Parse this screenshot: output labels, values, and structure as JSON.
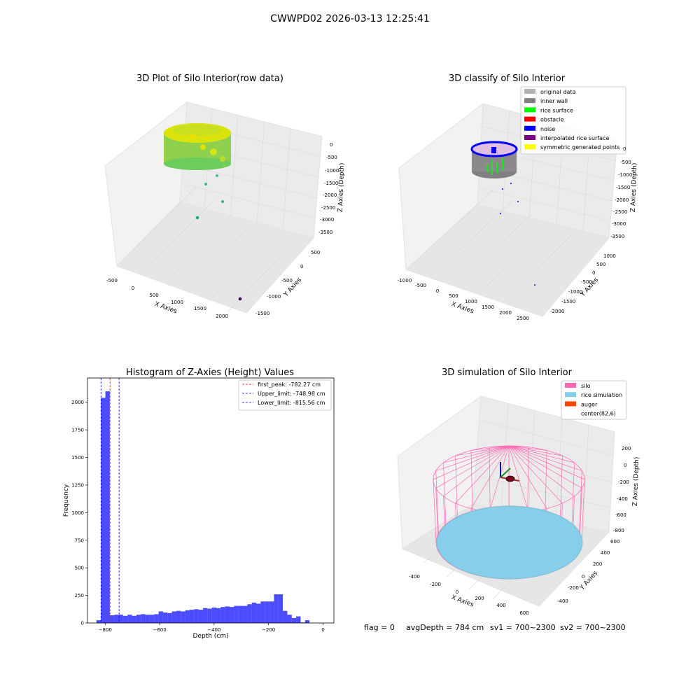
{
  "suptitle": "CWWPD02 2026-03-13 12:25:41",
  "footer": {
    "flag": "flag = 0",
    "avg_depth": "avgDepth = 784 cm",
    "sv1": "sv1 = 700~2300",
    "sv2": "sv2 = 700~2300"
  },
  "panels": {
    "p1": {
      "title": "3D Plot of Silo Interior(row data)",
      "xlabel": "X Axies",
      "ylabel": "Y Axies",
      "zlabel": "Z Axies (Depth)",
      "xticks": [
        "-500",
        "0",
        "500",
        "1000",
        "1500",
        "2000"
      ],
      "yticks": [
        "-1500",
        "-1000",
        "-500",
        "0",
        "500"
      ],
      "zticks": [
        "0",
        "-500",
        "-1000",
        "-1500",
        "-2000",
        "-2500",
        "-3000",
        "-3500"
      ]
    },
    "p2": {
      "title": "3D classify of Silo Interior",
      "xlabel": "X Axies",
      "ylabel": "Y Axies",
      "zlabel": "Z Axies (Depth)",
      "xticks": [
        "-1000",
        "-500",
        "0",
        "500",
        "1000",
        "1500",
        "2000",
        "2500"
      ],
      "yticks": [
        "-2000",
        "-1500",
        "-1000",
        "-500",
        "0",
        "500",
        "1000"
      ],
      "zticks": [
        "0",
        "-500",
        "-1000",
        "-1500",
        "-2000",
        "-2500",
        "-3000",
        "-3500"
      ],
      "legend": [
        {
          "label": "original data",
          "color": "#b4b4b4"
        },
        {
          "label": "inner wall",
          "color": "#808080"
        },
        {
          "label": "rice surface",
          "color": "#00ff00"
        },
        {
          "label": "obstacle",
          "color": "#ff0000"
        },
        {
          "label": "noise",
          "color": "#0000ff"
        },
        {
          "label": "interpolated rice surface",
          "color": "#800080"
        },
        {
          "label": "symmetric generated points",
          "color": "#ffff00"
        }
      ]
    },
    "p3": {
      "title": "Histogram of Z-Axies (Height) Values",
      "legend": [
        {
          "label": "first_peak: -782.27 cm",
          "color": "#ff0000"
        },
        {
          "label": "Upper_limit: -748.98 cm",
          "color": "#0000ff"
        },
        {
          "label": "Lower_limit: -815.56 cm",
          "color": "#0000ff"
        }
      ]
    },
    "p4": {
      "title": "3D simulation of Silo Interior",
      "xlabel": "X Axies",
      "ylabel": "Y Axies",
      "zlabel": "Z Axies (Depth)",
      "xticks": [
        "-400",
        "-200",
        "0",
        "200",
        "400",
        "600"
      ],
      "yticks": [
        "-400",
        "-200",
        "0",
        "200",
        "400",
        "600"
      ],
      "zticks": [
        "200",
        "0",
        "-200",
        "-400",
        "-600",
        "-800"
      ],
      "legend": [
        {
          "label": "silo",
          "color": "#ff69b4"
        },
        {
          "label": "rice simulation",
          "color": "#87ceeb"
        },
        {
          "label": "auger",
          "color": "#ff4500"
        },
        {
          "label": "center(82,6)",
          "color": "none"
        }
      ]
    }
  },
  "chart_data": {
    "type": "bar",
    "title": "Histogram of Z-Axies (Height) Values",
    "xlabel": "Depth (cm)",
    "ylabel": "Frequency",
    "xlim": [
      -865,
      40
    ],
    "ylim": [
      0,
      2220
    ],
    "xticks": [
      -800,
      -600,
      -400,
      -200,
      0
    ],
    "yticks": [
      0,
      250,
      500,
      750,
      1000,
      1250,
      1500,
      1750,
      2000
    ],
    "bar_color": "#0000ff",
    "bin_width": 16.3,
    "bin_start": -832,
    "values": [
      25,
      2040,
      2100,
      70,
      75,
      75,
      65,
      75,
      65,
      75,
      80,
      75,
      75,
      80,
      105,
      95,
      90,
      105,
      110,
      105,
      115,
      120,
      125,
      120,
      135,
      130,
      140,
      135,
      145,
      150,
      145,
      155,
      155,
      155,
      170,
      185,
      175,
      195,
      195,
      195,
      260,
      260,
      110,
      75,
      45,
      60,
      5,
      25
    ],
    "vlines": [
      {
        "name": "first_peak",
        "x": -782.27,
        "color": "#ff0000"
      },
      {
        "name": "Upper_limit",
        "x": -748.98,
        "color": "#0000ff"
      },
      {
        "name": "Lower_limit",
        "x": -815.56,
        "color": "#0000ff"
      }
    ]
  }
}
